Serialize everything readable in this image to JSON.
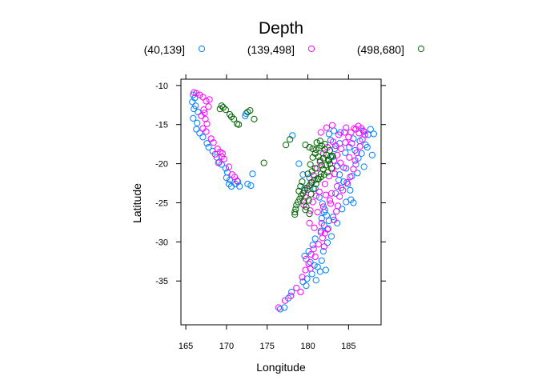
{
  "chart_data": {
    "type": "scatter",
    "title": "Depth",
    "xlabel": "Longitude",
    "ylabel": "Latitude",
    "xlim": [
      164.4,
      189.0
    ],
    "ylim": [
      -40.6,
      -9.2
    ],
    "x_ticks": [
      165,
      170,
      175,
      180,
      185
    ],
    "y_ticks": [
      -10,
      -15,
      -20,
      -25,
      -30,
      -35
    ],
    "grid": false,
    "legend_position": "top",
    "series": [
      {
        "name": "(40,139]",
        "color": "#0080ff",
        "points": [
          [
            165.9,
            -11.2
          ],
          [
            166.1,
            -11.6
          ],
          [
            165.8,
            -12.1
          ],
          [
            166.2,
            -12.6
          ],
          [
            166.0,
            -13.0
          ],
          [
            166.5,
            -13.4
          ],
          [
            165.9,
            -14.2
          ],
          [
            166.4,
            -14.8
          ],
          [
            166.3,
            -15.6
          ],
          [
            166.7,
            -16.1
          ],
          [
            167.1,
            -16.6
          ],
          [
            167.6,
            -17.4
          ],
          [
            167.8,
            -17.9
          ],
          [
            168.3,
            -18.4
          ],
          [
            168.8,
            -19.2
          ],
          [
            169.1,
            -19.8
          ],
          [
            169.4,
            -20.1
          ],
          [
            169.9,
            -20.6
          ],
          [
            170.1,
            -21.1
          ],
          [
            170.0,
            -21.8
          ],
          [
            170.4,
            -22.1
          ],
          [
            170.3,
            -22.6
          ],
          [
            170.6,
            -22.9
          ],
          [
            171.1,
            -22.6
          ],
          [
            171.4,
            -22.3
          ],
          [
            171.6,
            -22.9
          ],
          [
            172.6,
            -22.6
          ],
          [
            173.0,
            -22.8
          ],
          [
            173.2,
            -21.3
          ],
          [
            172.4,
            -13.6
          ],
          [
            172.3,
            -13.9
          ],
          [
            178.1,
            -16.4
          ],
          [
            178.9,
            -20.0
          ],
          [
            179.4,
            -21.4
          ],
          [
            180.2,
            -21.8
          ],
          [
            180.9,
            -23.2
          ],
          [
            181.4,
            -24.3
          ],
          [
            181.8,
            -25.1
          ],
          [
            182.1,
            -25.9
          ],
          [
            182.3,
            -26.6
          ],
          [
            182.6,
            -27.3
          ],
          [
            182.0,
            -27.9
          ],
          [
            181.6,
            -28.6
          ],
          [
            180.9,
            -29.6
          ],
          [
            180.6,
            -30.4
          ],
          [
            180.1,
            -31.2
          ],
          [
            179.6,
            -31.8
          ],
          [
            180.3,
            -32.6
          ],
          [
            181.2,
            -33.2
          ],
          [
            181.5,
            -33.8
          ],
          [
            180.5,
            -34.1
          ],
          [
            179.9,
            -34.7
          ],
          [
            179.4,
            -35.1
          ],
          [
            179.8,
            -35.6
          ],
          [
            178.0,
            -36.4
          ],
          [
            177.6,
            -37.2
          ],
          [
            177.1,
            -38.4
          ],
          [
            176.6,
            -38.6
          ],
          [
            179.6,
            -23.1
          ],
          [
            183.1,
            -19.1
          ],
          [
            183.6,
            -20.3
          ],
          [
            183.9,
            -21.4
          ],
          [
            184.4,
            -22.3
          ],
          [
            184.1,
            -23.1
          ],
          [
            183.4,
            -23.8
          ],
          [
            184.9,
            -22.6
          ],
          [
            185.2,
            -23.4
          ],
          [
            185.4,
            -21.6
          ],
          [
            184.7,
            -20.6
          ],
          [
            185.9,
            -20.1
          ],
          [
            186.2,
            -19.3
          ],
          [
            186.6,
            -18.7
          ],
          [
            187.1,
            -17.6
          ],
          [
            187.4,
            -16.3
          ],
          [
            186.8,
            -15.8
          ],
          [
            185.6,
            -16.8
          ],
          [
            185.1,
            -17.9
          ],
          [
            184.6,
            -18.6
          ],
          [
            183.9,
            -17.4
          ],
          [
            183.3,
            -18.1
          ],
          [
            182.8,
            -17.0
          ],
          [
            182.6,
            -16.2
          ],
          [
            187.7,
            -15.6
          ],
          [
            187.3,
            -17.9
          ],
          [
            186.4,
            -17.1
          ],
          [
            185.8,
            -18.3
          ],
          [
            184.2,
            -25.8
          ],
          [
            184.7,
            -24.9
          ],
          [
            185.3,
            -24.6
          ],
          [
            183.1,
            -26.8
          ],
          [
            183.6,
            -27.6
          ],
          [
            182.9,
            -29.3
          ],
          [
            182.4,
            -30.1
          ],
          [
            181.9,
            -31.2
          ],
          [
            181.7,
            -32.4
          ],
          [
            182.2,
            -33.6
          ],
          [
            181.0,
            -34.9
          ],
          [
            180.8,
            -33.0
          ],
          [
            182.5,
            -28.3
          ],
          [
            183.8,
            -22.1
          ],
          [
            185.6,
            -25.0
          ],
          [
            186.1,
            -21.2
          ],
          [
            186.9,
            -20.4
          ],
          [
            187.9,
            -18.9
          ],
          [
            188.1,
            -16.2
          ],
          [
            183.2,
            -15.8
          ],
          [
            184.0,
            -16.0
          ],
          [
            181.7,
            -27.0
          ],
          [
            182.0,
            -26.2
          ]
        ]
      },
      {
        "name": "(139,498]",
        "color": "#ff00ff",
        "points": [
          [
            166.0,
            -10.9
          ],
          [
            166.3,
            -11.0
          ],
          [
            166.7,
            -11.2
          ],
          [
            167.1,
            -11.5
          ],
          [
            167.5,
            -12.0
          ],
          [
            167.8,
            -12.7
          ],
          [
            167.2,
            -13.1
          ],
          [
            166.9,
            -13.9
          ],
          [
            167.4,
            -14.3
          ],
          [
            167.6,
            -14.9
          ],
          [
            167.1,
            -15.5
          ],
          [
            167.5,
            -15.9
          ],
          [
            168.1,
            -16.8
          ],
          [
            168.4,
            -17.3
          ],
          [
            168.9,
            -18.1
          ],
          [
            169.2,
            -18.5
          ],
          [
            169.4,
            -19.1
          ],
          [
            169.7,
            -19.4
          ],
          [
            169.0,
            -19.9
          ],
          [
            170.3,
            -20.4
          ],
          [
            170.7,
            -21.4
          ],
          [
            171.0,
            -21.7
          ],
          [
            171.3,
            -22.2
          ],
          [
            167.9,
            -11.8
          ],
          [
            167.3,
            -13.5
          ],
          [
            168.6,
            -18.8
          ],
          [
            169.5,
            -18.7
          ],
          [
            176.4,
            -38.4
          ],
          [
            177.2,
            -37.5
          ],
          [
            177.9,
            -36.9
          ],
          [
            178.6,
            -35.9
          ],
          [
            179.3,
            -34.5
          ],
          [
            179.7,
            -33.6
          ],
          [
            180.1,
            -32.8
          ],
          [
            179.8,
            -32.2
          ],
          [
            180.4,
            -31.6
          ],
          [
            180.7,
            -30.9
          ],
          [
            181.3,
            -30.3
          ],
          [
            181.8,
            -29.5
          ],
          [
            182.1,
            -28.9
          ],
          [
            182.4,
            -28.4
          ],
          [
            183.2,
            -27.2
          ],
          [
            183.5,
            -26.1
          ],
          [
            183.7,
            -25.4
          ],
          [
            182.7,
            -24.7
          ],
          [
            181.9,
            -25.5
          ],
          [
            181.2,
            -26.2
          ],
          [
            180.3,
            -26.0
          ],
          [
            180.6,
            -24.9
          ],
          [
            181.4,
            -23.6
          ],
          [
            182.1,
            -22.6
          ],
          [
            182.6,
            -21.6
          ],
          [
            183.0,
            -20.6
          ],
          [
            183.2,
            -19.6
          ],
          [
            183.6,
            -18.9
          ],
          [
            184.1,
            -18.1
          ],
          [
            184.6,
            -17.3
          ],
          [
            185.0,
            -16.6
          ],
          [
            185.3,
            -16.0
          ],
          [
            185.7,
            -15.5
          ],
          [
            186.2,
            -15.2
          ],
          [
            186.6,
            -15.5
          ],
          [
            186.9,
            -15.9
          ],
          [
            185.9,
            -15.6
          ],
          [
            184.7,
            -15.4
          ],
          [
            183.8,
            -16.3
          ],
          [
            183.1,
            -17.2
          ],
          [
            182.4,
            -17.9
          ],
          [
            181.9,
            -18.7
          ],
          [
            181.5,
            -19.8
          ],
          [
            181.1,
            -20.6
          ],
          [
            180.7,
            -21.5
          ],
          [
            180.4,
            -22.4
          ],
          [
            180.0,
            -23.3
          ],
          [
            179.7,
            -24.3
          ],
          [
            179.5,
            -25.3
          ],
          [
            180.2,
            -27.6
          ],
          [
            180.8,
            -28.2
          ],
          [
            181.6,
            -28.8
          ],
          [
            182.8,
            -25.1
          ],
          [
            183.9,
            -24.2
          ],
          [
            184.3,
            -23.4
          ],
          [
            184.8,
            -22.4
          ],
          [
            185.2,
            -21.7
          ],
          [
            185.6,
            -20.7
          ],
          [
            185.8,
            -19.6
          ],
          [
            186.0,
            -18.6
          ],
          [
            186.4,
            -17.8
          ],
          [
            186.7,
            -16.9
          ],
          [
            187.0,
            -16.3
          ],
          [
            182.3,
            -15.4
          ],
          [
            183.0,
            -15.1
          ],
          [
            181.6,
            -16.0
          ],
          [
            185.1,
            -19.2
          ],
          [
            184.4,
            -20.5
          ],
          [
            183.6,
            -22.9
          ],
          [
            182.9,
            -23.8
          ],
          [
            181.0,
            -24.1
          ],
          [
            180.9,
            -31.9
          ],
          [
            182.0,
            -30.6
          ],
          [
            180.3,
            -33.4
          ],
          [
            179.1,
            -36.4
          ],
          [
            184.5,
            -16.0
          ],
          [
            183.4,
            -17.7
          ],
          [
            186.3,
            -16.1
          ],
          [
            185.4,
            -17.4
          ],
          [
            184.0,
            -19.9
          ],
          [
            183.3,
            -21.3
          ],
          [
            182.2,
            -24.0
          ],
          [
            181.7,
            -27.6
          ]
        ]
      },
      {
        "name": "(498,680]",
        "color": "#006400",
        "points": [
          [
            169.2,
            -13.0
          ],
          [
            169.6,
            -12.8
          ],
          [
            169.9,
            -13.1
          ],
          [
            169.4,
            -12.6
          ],
          [
            170.4,
            -13.7
          ],
          [
            170.9,
            -14.3
          ],
          [
            171.3,
            -14.9
          ],
          [
            170.6,
            -14.0
          ],
          [
            171.5,
            -15.0
          ],
          [
            172.6,
            -13.4
          ],
          [
            172.9,
            -13.2
          ],
          [
            173.4,
            -14.3
          ],
          [
            174.6,
            -19.9
          ],
          [
            177.3,
            -17.6
          ],
          [
            177.8,
            -16.9
          ],
          [
            179.7,
            -17.6
          ],
          [
            180.2,
            -17.9
          ],
          [
            180.6,
            -18.1
          ],
          [
            181.0,
            -18.2
          ],
          [
            181.4,
            -18.0
          ],
          [
            181.7,
            -17.7
          ],
          [
            182.1,
            -18.2
          ],
          [
            182.3,
            -18.9
          ],
          [
            182.5,
            -19.5
          ],
          [
            182.7,
            -20.0
          ],
          [
            182.9,
            -20.6
          ],
          [
            182.4,
            -21.1
          ],
          [
            182.0,
            -21.4
          ],
          [
            181.6,
            -21.7
          ],
          [
            181.2,
            -21.9
          ],
          [
            180.8,
            -22.1
          ],
          [
            180.5,
            -22.4
          ],
          [
            180.2,
            -22.8
          ],
          [
            179.9,
            -23.1
          ],
          [
            179.6,
            -23.4
          ],
          [
            179.4,
            -23.8
          ],
          [
            179.2,
            -24.1
          ],
          [
            179.0,
            -24.5
          ],
          [
            178.8,
            -24.9
          ],
          [
            178.6,
            -25.3
          ],
          [
            178.5,
            -25.8
          ],
          [
            178.4,
            -26.2
          ],
          [
            178.4,
            -26.5
          ],
          [
            179.8,
            -25.5
          ],
          [
            180.1,
            -24.7
          ],
          [
            180.4,
            -23.9
          ],
          [
            180.7,
            -23.2
          ],
          [
            181.0,
            -22.6
          ],
          [
            181.3,
            -22.0
          ],
          [
            181.6,
            -21.3
          ],
          [
            181.9,
            -20.7
          ],
          [
            182.2,
            -20.2
          ],
          [
            182.6,
            -19.6
          ],
          [
            182.8,
            -19.1
          ],
          [
            181.3,
            -19.1
          ],
          [
            181.5,
            -19.6
          ],
          [
            181.7,
            -20.2
          ],
          [
            180.9,
            -20.6
          ],
          [
            180.5,
            -21.0
          ],
          [
            180.0,
            -21.3
          ],
          [
            180.6,
            -19.2
          ],
          [
            180.9,
            -18.7
          ],
          [
            181.1,
            -17.3
          ],
          [
            181.5,
            -17.1
          ],
          [
            182.1,
            -17.5
          ],
          [
            182.7,
            -18.3
          ],
          [
            183.0,
            -19.0
          ],
          [
            179.3,
            -22.3
          ],
          [
            179.1,
            -22.9
          ],
          [
            178.9,
            -23.5
          ],
          [
            179.5,
            -24.8
          ],
          [
            179.7,
            -25.9
          ],
          [
            180.3,
            -20.1
          ],
          [
            181.9,
            -19.3
          ],
          [
            180.2,
            -26.4
          ]
        ]
      }
    ]
  }
}
